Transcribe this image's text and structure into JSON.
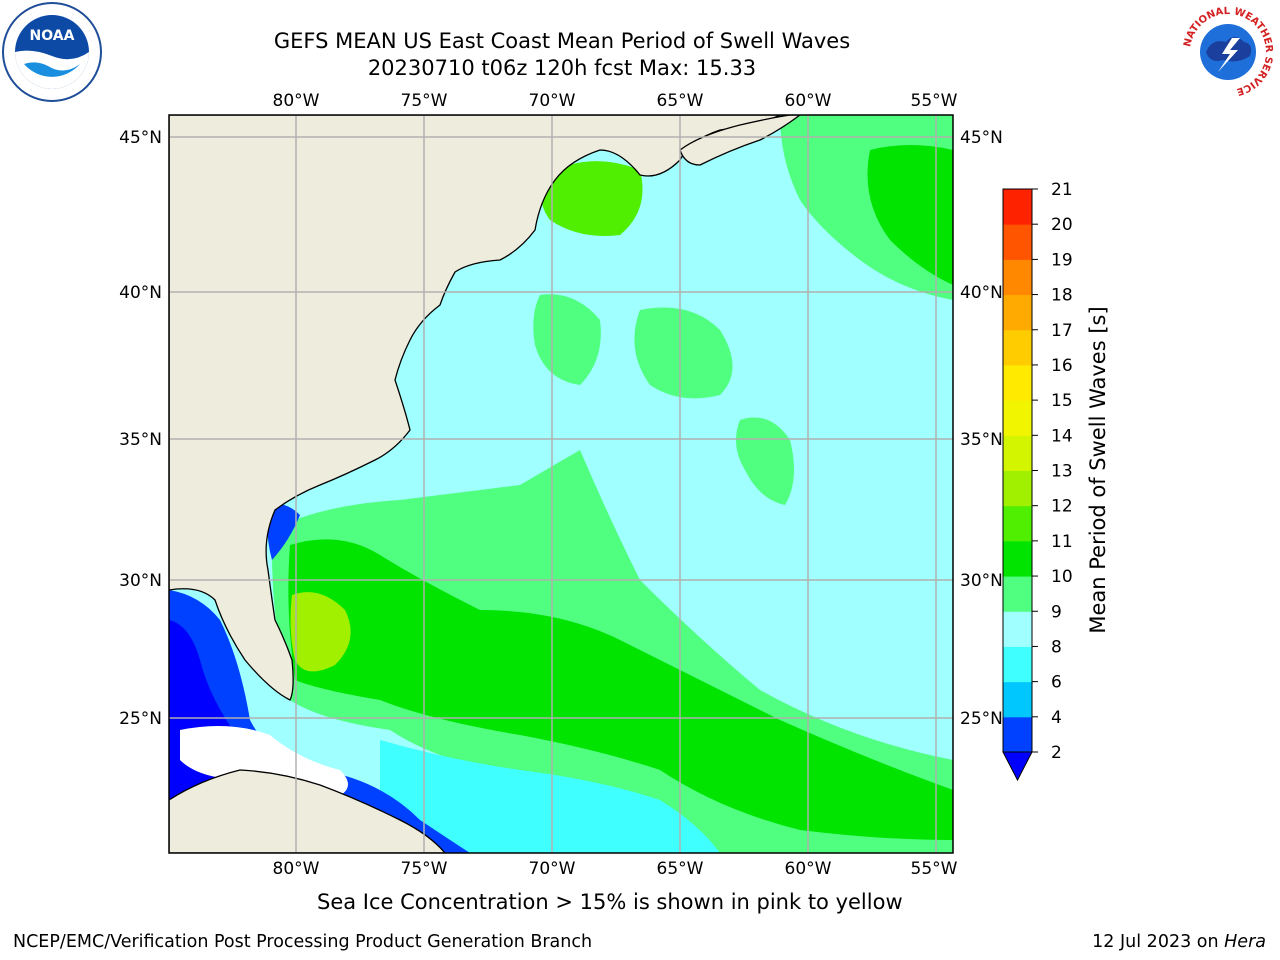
{
  "title_line1": "GEFS MEAN US East Coast Mean Period of Swell Waves",
  "title_line2": "20230710 t06z 120h fcst   Max: 15.33",
  "logos": {
    "left": "noaa-logo",
    "right": "national-weather-service-logo"
  },
  "logo_text": {
    "noaa": "NOAA",
    "nws_ring": "NATIONAL WEATHER SERVICE"
  },
  "map": {
    "lon_labels": [
      "80°W",
      "75°W",
      "70°W",
      "65°W",
      "60°W",
      "55°W"
    ],
    "lat_labels": [
      "45°N",
      "40°N",
      "35°N",
      "30°N",
      "25°N"
    ],
    "grid": true,
    "land_color": "#eeecdc",
    "gridline_color": "#b0b0b0"
  },
  "colorbar": {
    "title": "Mean Period of Swell Waves [s]",
    "levels": [
      "2",
      "4",
      "6",
      "8",
      "9",
      "10",
      "11",
      "12",
      "13",
      "14",
      "15",
      "16",
      "17",
      "18",
      "19",
      "20",
      "21"
    ],
    "colors": [
      "#0040ff",
      "#00c8ff",
      "#40ffff",
      "#a0ffff",
      "#50ff80",
      "#00e400",
      "#50ee00",
      "#a0f000",
      "#d4f500",
      "#f2f500",
      "#ffea00",
      "#ffcc00",
      "#ffaa00",
      "#ff8800",
      "#ff5500",
      "#ff2200"
    ],
    "under_color": "#0000ff"
  },
  "note": "Sea Ice Concentration > 15% is shown in pink to yellow",
  "footer": {
    "left": "NCEP/EMC/Verification Post Processing Product Generation Branch",
    "date": "12 Jul 2023 on ",
    "machine": "Hera"
  }
}
